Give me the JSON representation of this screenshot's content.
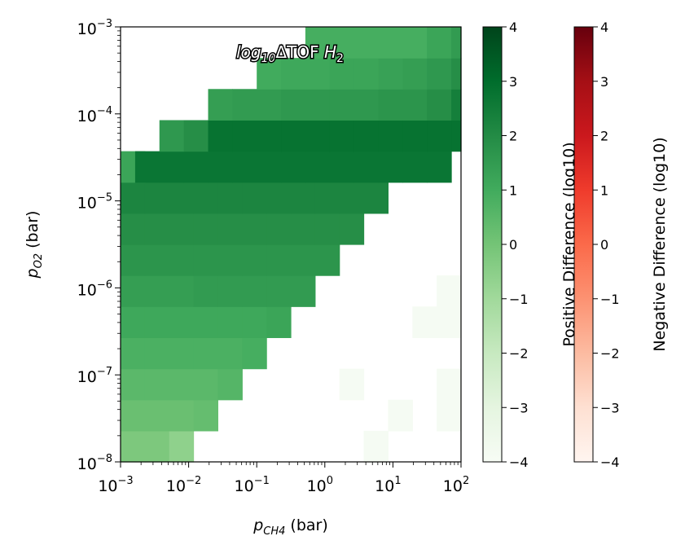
{
  "chart_data": {
    "type": "heatmap",
    "title_base": "log",
    "title_sub": "10",
    "title_mid": "ΔTOF ",
    "title_var": "H",
    "title_var_sub": "2",
    "xlabel_var": "p",
    "xlabel_sub": "CH4",
    "xlabel_unit": " (bar)",
    "ylabel_var": "p",
    "ylabel_sub": "O2",
    "ylabel_unit": " (bar)",
    "xscale": "log",
    "yscale": "log",
    "xlim_log10": [
      -3,
      2
    ],
    "ylim_log10": [
      -8,
      -3
    ],
    "x_major_ticks": [
      {
        "base": "10",
        "exp": "−3",
        "v": -3
      },
      {
        "base": "10",
        "exp": "−2",
        "v": -2
      },
      {
        "base": "10",
        "exp": "−1",
        "v": -1
      },
      {
        "base": "10",
        "exp": "0",
        "v": 0
      },
      {
        "base": "10",
        "exp": "1",
        "v": 1
      },
      {
        "base": "10",
        "exp": "2",
        "v": 2
      }
    ],
    "y_major_ticks": [
      {
        "base": "10",
        "exp": "−8",
        "v": -8
      },
      {
        "base": "10",
        "exp": "−7",
        "v": -7
      },
      {
        "base": "10",
        "exp": "−6",
        "v": -6
      },
      {
        "base": "10",
        "exp": "−5",
        "v": -5
      },
      {
        "base": "10",
        "exp": "−4",
        "v": -4
      },
      {
        "base": "10",
        "exp": "−3",
        "v": -3
      }
    ],
    "grid": false,
    "cell_size_log10": 0.357,
    "cells": [
      {
        "x0": -3.0,
        "y0": -8.0,
        "v": -0.2
      },
      {
        "x0": -2.643,
        "y0": -8.0,
        "v": -0.2
      },
      {
        "x0": -2.286,
        "y0": -8.0,
        "v": -0.6
      },
      {
        "x0": 0.571,
        "y0": -8.0,
        "v": -3.9
      },
      {
        "x0": -3.0,
        "y0": -7.643,
        "v": 0.2
      },
      {
        "x0": -2.643,
        "y0": -7.643,
        "v": 0.2
      },
      {
        "x0": -2.286,
        "y0": -7.643,
        "v": 0.2
      },
      {
        "x0": -1.929,
        "y0": -7.643,
        "v": 0.3
      },
      {
        "x0": 0.929,
        "y0": -7.643,
        "v": -3.9
      },
      {
        "x0": 1.643,
        "y0": -7.643,
        "v": -3.9
      },
      {
        "x0": -3.0,
        "y0": -7.286,
        "v": 0.5
      },
      {
        "x0": -2.643,
        "y0": -7.286,
        "v": 0.5
      },
      {
        "x0": -2.286,
        "y0": -7.286,
        "v": 0.5
      },
      {
        "x0": -1.929,
        "y0": -7.286,
        "v": 0.5
      },
      {
        "x0": -1.571,
        "y0": -7.286,
        "v": 0.6
      },
      {
        "x0": 0.214,
        "y0": -7.286,
        "v": -3.9
      },
      {
        "x0": 1.643,
        "y0": -7.286,
        "v": -3.9
      },
      {
        "x0": -3.0,
        "y0": -6.929,
        "v": 0.8
      },
      {
        "x0": -2.643,
        "y0": -6.929,
        "v": 0.8
      },
      {
        "x0": -2.286,
        "y0": -6.929,
        "v": 0.8
      },
      {
        "x0": -1.929,
        "y0": -6.929,
        "v": 0.8
      },
      {
        "x0": -1.571,
        "y0": -6.929,
        "v": 0.8
      },
      {
        "x0": -1.214,
        "y0": -6.929,
        "v": 0.9
      },
      {
        "x0": -3.0,
        "y0": -6.571,
        "v": 1.1
      },
      {
        "x0": -2.643,
        "y0": -6.571,
        "v": 1.1
      },
      {
        "x0": -2.286,
        "y0": -6.571,
        "v": 1.1
      },
      {
        "x0": -1.929,
        "y0": -6.571,
        "v": 1.1
      },
      {
        "x0": -1.571,
        "y0": -6.571,
        "v": 1.1
      },
      {
        "x0": -1.214,
        "y0": -6.571,
        "v": 1.1
      },
      {
        "x0": -0.857,
        "y0": -6.571,
        "v": 1.2
      },
      {
        "x0": 1.286,
        "y0": -6.571,
        "v": -3.9
      },
      {
        "x0": 1.643,
        "y0": -6.571,
        "v": -3.9
      },
      {
        "x0": -3.0,
        "y0": -6.214,
        "v": 1.4
      },
      {
        "x0": -2.643,
        "y0": -6.214,
        "v": 1.4
      },
      {
        "x0": -2.286,
        "y0": -6.214,
        "v": 1.4
      },
      {
        "x0": -1.929,
        "y0": -6.214,
        "v": 1.5
      },
      {
        "x0": -1.571,
        "y0": -6.214,
        "v": 1.5
      },
      {
        "x0": -1.214,
        "y0": -6.214,
        "v": 1.5
      },
      {
        "x0": -0.857,
        "y0": -6.214,
        "v": 1.5
      },
      {
        "x0": -0.5,
        "y0": -6.214,
        "v": 1.5
      },
      {
        "x0": 1.643,
        "y0": -6.214,
        "v": -3.9
      },
      {
        "x0": -3.0,
        "y0": -5.857,
        "v": 1.7
      },
      {
        "x0": -2.643,
        "y0": -5.857,
        "v": 1.7
      },
      {
        "x0": -2.286,
        "y0": -5.857,
        "v": 1.7
      },
      {
        "x0": -1.929,
        "y0": -5.857,
        "v": 1.7
      },
      {
        "x0": -1.571,
        "y0": -5.857,
        "v": 1.7
      },
      {
        "x0": -1.214,
        "y0": -5.857,
        "v": 1.7
      },
      {
        "x0": -0.857,
        "y0": -5.857,
        "v": 1.7
      },
      {
        "x0": -0.5,
        "y0": -5.857,
        "v": 1.7
      },
      {
        "x0": -0.143,
        "y0": -5.857,
        "v": 1.7
      },
      {
        "x0": -3.0,
        "y0": -5.5,
        "v": 1.9
      },
      {
        "x0": -2.643,
        "y0": -5.5,
        "v": 1.9
      },
      {
        "x0": -2.286,
        "y0": -5.5,
        "v": 1.9
      },
      {
        "x0": -1.929,
        "y0": -5.5,
        "v": 1.9
      },
      {
        "x0": -1.571,
        "y0": -5.5,
        "v": 1.9
      },
      {
        "x0": -1.214,
        "y0": -5.5,
        "v": 1.9
      },
      {
        "x0": -0.857,
        "y0": -5.5,
        "v": 1.9
      },
      {
        "x0": -0.5,
        "y0": -5.5,
        "v": 1.9
      },
      {
        "x0": -0.143,
        "y0": -5.5,
        "v": 1.9
      },
      {
        "x0": 0.214,
        "y0": -5.5,
        "v": 1.9
      },
      {
        "x0": -3.0,
        "y0": -5.143,
        "v": 2.2
      },
      {
        "x0": -2.643,
        "y0": -5.143,
        "v": 2.2
      },
      {
        "x0": -2.286,
        "y0": -5.143,
        "v": 2.2
      },
      {
        "x0": -1.929,
        "y0": -5.143,
        "v": 2.2
      },
      {
        "x0": -1.571,
        "y0": -5.143,
        "v": 2.2
      },
      {
        "x0": -1.214,
        "y0": -5.143,
        "v": 2.2
      },
      {
        "x0": -0.857,
        "y0": -5.143,
        "v": 2.2
      },
      {
        "x0": -0.5,
        "y0": -5.143,
        "v": 2.2
      },
      {
        "x0": -0.143,
        "y0": -5.143,
        "v": 2.2
      },
      {
        "x0": 0.214,
        "y0": -5.143,
        "v": 2.2
      },
      {
        "x0": 0.571,
        "y0": -5.143,
        "v": 2.2
      },
      {
        "x0": -3.0,
        "y0": -4.786,
        "v": 1.2
      },
      {
        "x0": -2.786,
        "y0": -4.786,
        "v": 2.7
      },
      {
        "x0": -2.429,
        "y0": -4.786,
        "v": 2.7
      },
      {
        "x0": -2.071,
        "y0": -4.786,
        "v": 2.7
      },
      {
        "x0": -1.714,
        "y0": -4.786,
        "v": 2.7
      },
      {
        "x0": -1.357,
        "y0": -4.786,
        "v": 2.7
      },
      {
        "x0": -1.0,
        "y0": -4.786,
        "v": 2.7
      },
      {
        "x0": -0.643,
        "y0": -4.786,
        "v": 2.7
      },
      {
        "x0": -0.286,
        "y0": -4.786,
        "v": 2.7
      },
      {
        "x0": 0.071,
        "y0": -4.786,
        "v": 2.7
      },
      {
        "x0": 0.429,
        "y0": -4.786,
        "v": 2.7
      },
      {
        "x0": 0.786,
        "y0": -4.786,
        "v": 2.7
      },
      {
        "x0": 1.143,
        "y0": -4.786,
        "v": 2.7
      },
      {
        "x0": 1.5,
        "y0": -4.786,
        "v": 2.7
      },
      {
        "x0": -2.429,
        "y0": -4.429,
        "v": 1.6
      },
      {
        "x0": -2.071,
        "y0": -4.429,
        "v": 1.9
      },
      {
        "x0": -1.714,
        "y0": -4.429,
        "v": 2.8
      },
      {
        "x0": -1.357,
        "y0": -4.429,
        "v": 2.8
      },
      {
        "x0": -1.0,
        "y0": -4.429,
        "v": 2.8
      },
      {
        "x0": -0.643,
        "y0": -4.429,
        "v": 2.8
      },
      {
        "x0": -0.286,
        "y0": -4.429,
        "v": 2.8
      },
      {
        "x0": 0.071,
        "y0": -4.429,
        "v": 2.8
      },
      {
        "x0": 0.429,
        "y0": -4.429,
        "v": 2.8
      },
      {
        "x0": 0.786,
        "y0": -4.429,
        "v": 2.8
      },
      {
        "x0": 1.143,
        "y0": -4.429,
        "v": 2.8
      },
      {
        "x0": 1.5,
        "y0": -4.429,
        "v": 2.8
      },
      {
        "x0": 1.857,
        "y0": -4.429,
        "v": 2.8
      },
      {
        "x0": -1.714,
        "y0": -4.071,
        "v": 1.4
      },
      {
        "x0": -1.357,
        "y0": -4.071,
        "v": 1.5
      },
      {
        "x0": -1.0,
        "y0": -4.071,
        "v": 1.5
      },
      {
        "x0": -0.643,
        "y0": -4.071,
        "v": 1.6
      },
      {
        "x0": -0.286,
        "y0": -4.071,
        "v": 1.6
      },
      {
        "x0": 0.071,
        "y0": -4.071,
        "v": 1.6
      },
      {
        "x0": 0.429,
        "y0": -4.071,
        "v": 1.6
      },
      {
        "x0": 0.786,
        "y0": -4.071,
        "v": 1.7
      },
      {
        "x0": 1.143,
        "y0": -4.071,
        "v": 1.7
      },
      {
        "x0": 1.5,
        "y0": -4.071,
        "v": 1.9
      },
      {
        "x0": 1.857,
        "y0": -4.071,
        "v": 2.4
      },
      {
        "x0": -1.0,
        "y0": -3.714,
        "v": 1.0
      },
      {
        "x0": -0.643,
        "y0": -3.714,
        "v": 1.1
      },
      {
        "x0": -0.286,
        "y0": -3.714,
        "v": 1.1
      },
      {
        "x0": 0.071,
        "y0": -3.714,
        "v": 1.2
      },
      {
        "x0": 0.429,
        "y0": -3.714,
        "v": 1.2
      },
      {
        "x0": 0.786,
        "y0": -3.714,
        "v": 1.3
      },
      {
        "x0": 1.143,
        "y0": -3.714,
        "v": 1.4
      },
      {
        "x0": 1.5,
        "y0": -3.714,
        "v": 1.6
      },
      {
        "x0": 1.857,
        "y0": -3.714,
        "v": 1.9
      },
      {
        "x0": -0.286,
        "y0": -3.357,
        "v": 0.9
      },
      {
        "x0": 0.071,
        "y0": -3.357,
        "v": 0.9
      },
      {
        "x0": 0.429,
        "y0": -3.357,
        "v": 0.9
      },
      {
        "x0": 0.786,
        "y0": -3.357,
        "v": 0.9
      },
      {
        "x0": 1.143,
        "y0": -3.357,
        "v": 0.9
      },
      {
        "x0": 1.5,
        "y0": -3.357,
        "v": 1.2
      },
      {
        "x0": 1.857,
        "y0": -3.357,
        "v": 1.5
      }
    ],
    "colorbars": [
      {
        "name": "green",
        "label": "Positive Difference (log10)",
        "range": [
          -4,
          4
        ],
        "stops": [
          "#f7fcf5",
          "#e5f5e0",
          "#c7e9c0",
          "#a1d99b",
          "#74c476",
          "#41ab5d",
          "#238b45",
          "#006d2c",
          "#00441b"
        ],
        "ticks": [
          "−4",
          "−3",
          "−2",
          "−1",
          "0",
          "1",
          "2",
          "3",
          "4"
        ]
      },
      {
        "name": "red",
        "label": "Negative Difference (log10)",
        "range": [
          -4,
          4
        ],
        "stops": [
          "#fff5f0",
          "#fee0d2",
          "#fcbba1",
          "#fc9272",
          "#fb6a4a",
          "#ef3b2c",
          "#cb181d",
          "#a50f15",
          "#67000d"
        ],
        "ticks": [
          "−4",
          "−3",
          "−2",
          "−1",
          "0",
          "1",
          "2",
          "3",
          "4"
        ]
      }
    ]
  }
}
